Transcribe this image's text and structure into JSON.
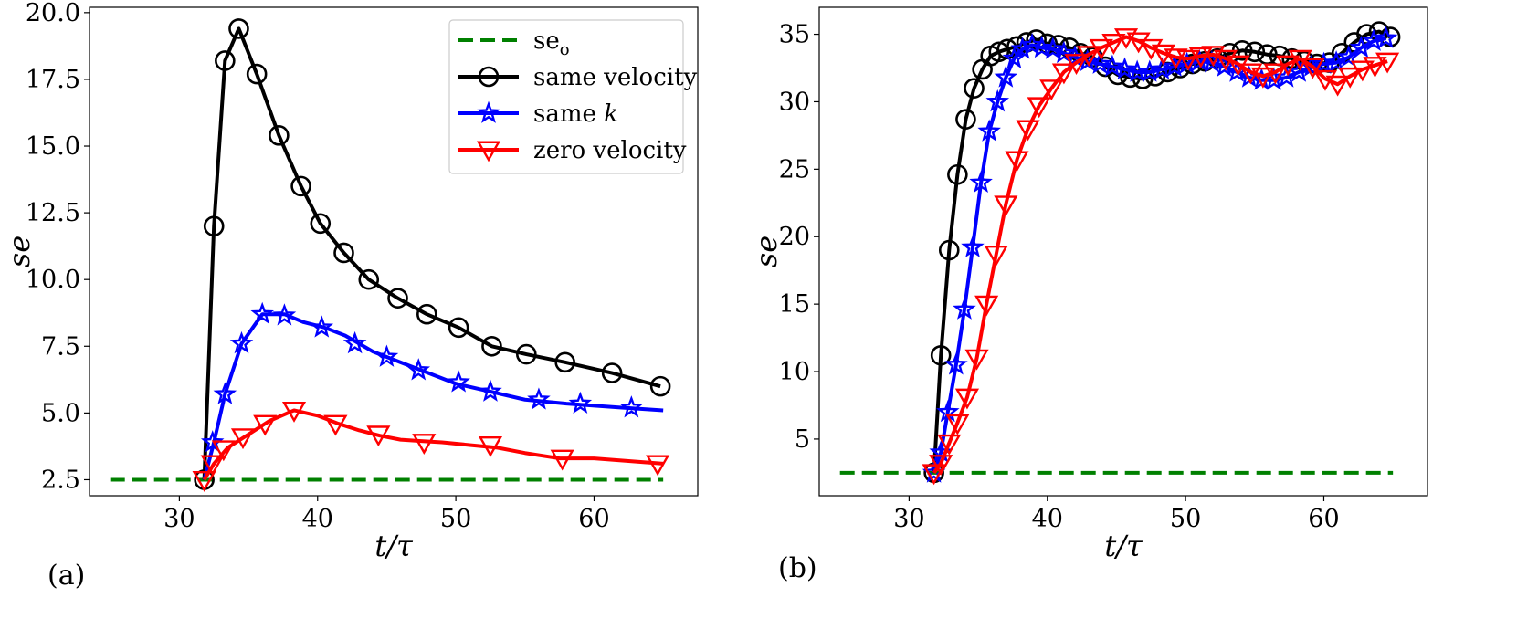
{
  "chart_data": [
    {
      "type": "line",
      "panel_label": "(a)",
      "xlabel": "t/τ",
      "ylabel": "se",
      "xlim": [
        23.5,
        67.5
      ],
      "ylim": [
        1.9,
        20.2
      ],
      "xticks": [
        30,
        40,
        50,
        60
      ],
      "xtick_labels": [
        "30",
        "40",
        "50",
        "60"
      ],
      "yticks": [
        2.5,
        5.0,
        7.5,
        10.0,
        12.5,
        15.0,
        17.5,
        20.0
      ],
      "ytick_labels": [
        "2.5",
        "5.0",
        "7.5",
        "10.0",
        "12.5",
        "15.0",
        "17.5",
        "20.0"
      ],
      "grid": false,
      "legend_position": "top-right",
      "legend": [
        {
          "label": "se",
          "subscript": "o"
        },
        {
          "label": "same velocity"
        },
        {
          "label": "same ",
          "italic": "k"
        },
        {
          "label": "zero velocity"
        }
      ],
      "series": [
        {
          "name": "se_o",
          "color": "#008000",
          "style": "dashed",
          "marker": "none",
          "x": [
            25,
            65
          ],
          "y": [
            2.5,
            2.5
          ]
        },
        {
          "name": "same velocity",
          "color": "#000000",
          "style": "solid",
          "marker": "circle",
          "x": [
            31.8,
            32.5,
            33.3,
            34.3,
            35.6,
            37.2,
            38.8,
            40.2,
            41.9,
            43.7,
            45.8,
            47.9,
            50.2,
            52.6,
            55.1,
            57.9,
            61.3,
            64.8
          ],
          "y": [
            2.5,
            12.0,
            18.2,
            19.4,
            17.7,
            15.4,
            13.5,
            12.1,
            11.0,
            10.0,
            9.3,
            8.7,
            8.2,
            7.5,
            7.2,
            6.9,
            6.5,
            6.0
          ],
          "markers_x": [
            31.8,
            32.5,
            33.3,
            34.3,
            35.6,
            37.2,
            38.8,
            40.2,
            41.9,
            43.7,
            45.8,
            47.9,
            50.2,
            52.6,
            55.1,
            57.9,
            61.3,
            64.8
          ],
          "markers_y": [
            2.5,
            12.0,
            18.2,
            19.4,
            17.7,
            15.4,
            13.5,
            12.1,
            11.0,
            10.0,
            9.3,
            8.7,
            8.2,
            7.5,
            7.2,
            6.9,
            6.5,
            6.0
          ]
        },
        {
          "name": "same k",
          "color": "#0000ff",
          "style": "solid",
          "marker": "star",
          "x": [
            31.8,
            32.5,
            33.3,
            34.5,
            36.0,
            37.6,
            39.0,
            40.5,
            42.0,
            44.0,
            46.0,
            48.0,
            50.0,
            52.5,
            55.0,
            58.0,
            62.0,
            65.0
          ],
          "y": [
            2.5,
            3.9,
            5.7,
            7.6,
            8.7,
            8.7,
            8.4,
            8.2,
            7.9,
            7.3,
            6.9,
            6.5,
            6.1,
            5.8,
            5.5,
            5.35,
            5.2,
            5.1
          ],
          "markers_x": [
            32.4,
            33.3,
            34.5,
            36.0,
            37.6,
            40.3,
            42.7,
            45.0,
            47.3,
            50.2,
            52.5,
            56.0,
            59.0,
            62.7
          ],
          "markers_y": [
            3.9,
            5.7,
            7.6,
            8.7,
            8.65,
            8.2,
            7.6,
            7.1,
            6.6,
            6.15,
            5.8,
            5.5,
            5.35,
            5.2
          ]
        },
        {
          "name": "zero velocity",
          "color": "#ff0000",
          "style": "solid",
          "marker": "triangle-down",
          "x": [
            31.8,
            32.5,
            33.5,
            35.0,
            36.5,
            38.3,
            40.0,
            41.5,
            43.0,
            44.5,
            46.0,
            47.5,
            49.0,
            51.0,
            53.0,
            55.0,
            57.5,
            60.0,
            62.5,
            65.0
          ],
          "y": [
            2.5,
            3.1,
            3.7,
            4.2,
            4.7,
            5.1,
            4.9,
            4.6,
            4.35,
            4.15,
            4.0,
            3.95,
            3.9,
            3.8,
            3.7,
            3.5,
            3.3,
            3.3,
            3.2,
            3.1
          ],
          "markers_x": [
            31.8,
            32.4,
            33.2,
            34.6,
            36.2,
            38.3,
            41.3,
            44.4,
            47.7,
            52.5,
            57.7,
            64.6
          ],
          "markers_y": [
            2.5,
            3.1,
            3.65,
            4.1,
            4.6,
            5.1,
            4.6,
            4.2,
            3.9,
            3.8,
            3.3,
            3.1
          ]
        }
      ]
    },
    {
      "type": "line",
      "panel_label": "(b)",
      "xlabel": "t/τ",
      "ylabel": "se",
      "xlim": [
        23.5,
        67.5
      ],
      "ylim": [
        0.8,
        37.0
      ],
      "xticks": [
        30,
        40,
        50,
        60
      ],
      "xtick_labels": [
        "30",
        "40",
        "50",
        "60"
      ],
      "yticks": [
        5,
        10,
        15,
        20,
        25,
        30,
        35
      ],
      "ytick_labels": [
        "5",
        "10",
        "15",
        "20",
        "25",
        "30",
        "35"
      ],
      "grid": false,
      "series": [
        {
          "name": "se_o",
          "color": "#008000",
          "style": "dashed",
          "marker": "none",
          "x": [
            25,
            65
          ],
          "y": [
            2.5,
            2.5
          ]
        },
        {
          "name": "same velocity",
          "color": "#000000",
          "style": "solid",
          "marker": "circle",
          "x": [
            31.8,
            32.3,
            32.9,
            33.5,
            34.1,
            34.7,
            35.3,
            35.9,
            36.5,
            37.1,
            37.8,
            38.5,
            39.2,
            40.0,
            40.8,
            41.6,
            42.4,
            43.3,
            44.2,
            45.1,
            46.0,
            46.9,
            47.8,
            48.7,
            49.6,
            50.5,
            51.4,
            52.3,
            53.2,
            54.1,
            55.0,
            55.9,
            56.8,
            57.7,
            58.6,
            59.5,
            60.4,
            61.3,
            62.2,
            63.1,
            64.0,
            64.8
          ],
          "y": [
            2.5,
            11.2,
            19.0,
            24.6,
            28.7,
            31.0,
            32.4,
            33.4,
            33.7,
            33.9,
            34.1,
            34.4,
            34.6,
            34.3,
            34.2,
            34.0,
            33.6,
            33.3,
            32.6,
            32.0,
            31.8,
            31.7,
            31.9,
            32.2,
            32.5,
            32.8,
            33.0,
            33.2,
            33.6,
            33.8,
            33.7,
            33.5,
            33.4,
            33.2,
            33.0,
            32.8,
            32.9,
            33.6,
            34.4,
            35.0,
            35.2,
            34.8
          ],
          "markers_x": [
            31.8,
            32.3,
            32.9,
            33.5,
            34.1,
            34.7,
            35.3,
            35.9,
            36.5,
            37.1,
            37.8,
            38.5,
            39.2,
            40.0,
            40.8,
            41.6,
            42.4,
            43.3,
            44.2,
            45.1,
            46.0,
            46.9,
            47.8,
            48.7,
            49.6,
            50.5,
            51.4,
            52.3,
            53.2,
            54.1,
            55.0,
            55.9,
            56.8,
            57.7,
            58.6,
            59.5,
            60.4,
            61.3,
            62.2,
            63.1,
            64.0,
            64.8
          ],
          "markers_y": [
            2.5,
            11.2,
            19.0,
            24.6,
            28.7,
            31.0,
            32.4,
            33.4,
            33.7,
            33.9,
            34.1,
            34.4,
            34.6,
            34.3,
            34.2,
            34.0,
            33.6,
            33.3,
            32.6,
            32.0,
            31.8,
            31.7,
            31.9,
            32.2,
            32.5,
            32.8,
            33.0,
            33.2,
            33.6,
            33.8,
            33.7,
            33.5,
            33.4,
            33.2,
            33.0,
            32.8,
            32.9,
            33.6,
            34.4,
            35.0,
            35.2,
            34.8
          ]
        },
        {
          "name": "same k",
          "color": "#0000ff",
          "style": "solid",
          "marker": "star",
          "x": [
            31.8,
            32.3,
            32.8,
            33.4,
            34.0,
            34.6,
            35.2,
            35.8,
            36.4,
            37.0,
            37.6,
            38.2,
            38.9,
            39.6,
            40.4,
            41.2,
            42.0,
            42.9,
            43.8,
            44.7,
            45.6,
            46.5,
            47.4,
            48.3,
            49.2,
            50.1,
            51.0,
            51.9,
            52.8,
            53.7,
            54.6,
            55.5,
            56.4,
            57.3,
            58.2,
            59.1,
            60.0,
            60.9,
            61.8,
            62.7,
            63.6,
            64.5
          ],
          "y": [
            2.5,
            4.0,
            7.0,
            10.5,
            14.6,
            19.2,
            24.0,
            27.8,
            30.0,
            31.8,
            33.2,
            33.9,
            34.2,
            34.0,
            33.9,
            33.6,
            33.3,
            33.0,
            32.8,
            32.6,
            32.4,
            32.2,
            32.2,
            32.4,
            32.6,
            32.8,
            33.0,
            32.9,
            32.6,
            32.2,
            31.8,
            31.6,
            31.6,
            31.8,
            32.2,
            32.6,
            32.8,
            32.9,
            33.3,
            34.0,
            34.5,
            34.7
          ],
          "markers_x": [
            31.8,
            32.3,
            32.8,
            33.4,
            34.0,
            34.6,
            35.2,
            35.8,
            36.4,
            37.0,
            37.6,
            38.2,
            38.9,
            39.6,
            40.4,
            41.2,
            42.0,
            42.9,
            43.8,
            44.7,
            45.6,
            46.5,
            47.4,
            48.3,
            49.2,
            50.1,
            51.0,
            51.9,
            52.8,
            53.7,
            54.6,
            55.5,
            56.4,
            57.3,
            58.2,
            59.1,
            60.0,
            60.9,
            61.8,
            62.7,
            63.6,
            64.5
          ],
          "markers_y": [
            2.5,
            4.0,
            7.0,
            10.5,
            14.6,
            19.2,
            24.0,
            27.8,
            30.0,
            31.8,
            33.2,
            33.9,
            34.2,
            34.0,
            33.9,
            33.6,
            33.3,
            33.0,
            32.8,
            32.6,
            32.4,
            32.2,
            32.2,
            32.4,
            32.6,
            32.8,
            33.0,
            32.9,
            32.6,
            32.2,
            31.8,
            31.6,
            31.6,
            31.8,
            32.2,
            32.6,
            32.8,
            32.9,
            33.3,
            34.0,
            34.5,
            34.7
          ]
        },
        {
          "name": "zero velocity",
          "color": "#ff0000",
          "style": "solid",
          "marker": "triangle-down",
          "x": [
            31.8,
            32.3,
            32.9,
            33.5,
            34.2,
            34.9,
            35.6,
            36.3,
            37.0,
            37.8,
            38.6,
            39.4,
            40.3,
            41.2,
            42.1,
            43.0,
            43.9,
            44.8,
            45.7,
            46.6,
            47.5,
            48.4,
            49.3,
            50.2,
            51.1,
            52.0,
            52.9,
            53.8,
            54.7,
            55.6,
            56.5,
            57.4,
            58.3,
            59.2,
            60.1,
            61.0,
            61.9,
            62.8,
            63.7,
            64.6
          ],
          "y": [
            2.5,
            3.2,
            4.7,
            6.2,
            8.1,
            11.0,
            15.0,
            18.7,
            22.4,
            25.7,
            28.0,
            29.7,
            31.0,
            32.2,
            32.9,
            33.5,
            34.0,
            34.4,
            34.8,
            34.5,
            34.0,
            33.6,
            33.3,
            33.2,
            33.4,
            33.5,
            33.2,
            32.8,
            32.2,
            31.9,
            32.2,
            32.8,
            33.2,
            32.6,
            31.7,
            31.3,
            31.9,
            32.4,
            32.7,
            33.0
          ],
          "markers_x": [
            31.8,
            32.3,
            32.9,
            33.5,
            34.2,
            34.9,
            35.6,
            36.3,
            37.0,
            37.8,
            38.6,
            39.4,
            40.3,
            41.2,
            42.1,
            43.0,
            43.9,
            44.8,
            45.7,
            46.6,
            47.5,
            48.4,
            49.3,
            50.2,
            51.1,
            52.0,
            52.9,
            53.8,
            54.7,
            55.6,
            56.5,
            57.4,
            58.3,
            59.2,
            60.1,
            61.0,
            61.9,
            62.8,
            63.7,
            64.6
          ],
          "markers_y": [
            2.5,
            3.2,
            4.7,
            6.2,
            8.1,
            11.0,
            15.0,
            18.7,
            22.4,
            25.7,
            28.0,
            29.7,
            31.0,
            32.2,
            32.9,
            33.5,
            34.0,
            34.4,
            34.8,
            34.5,
            34.0,
            33.6,
            33.3,
            33.2,
            33.4,
            33.5,
            33.2,
            32.8,
            32.2,
            31.9,
            32.2,
            32.8,
            33.2,
            32.6,
            31.7,
            31.3,
            31.9,
            32.4,
            32.7,
            33.0
          ]
        }
      ]
    }
  ]
}
